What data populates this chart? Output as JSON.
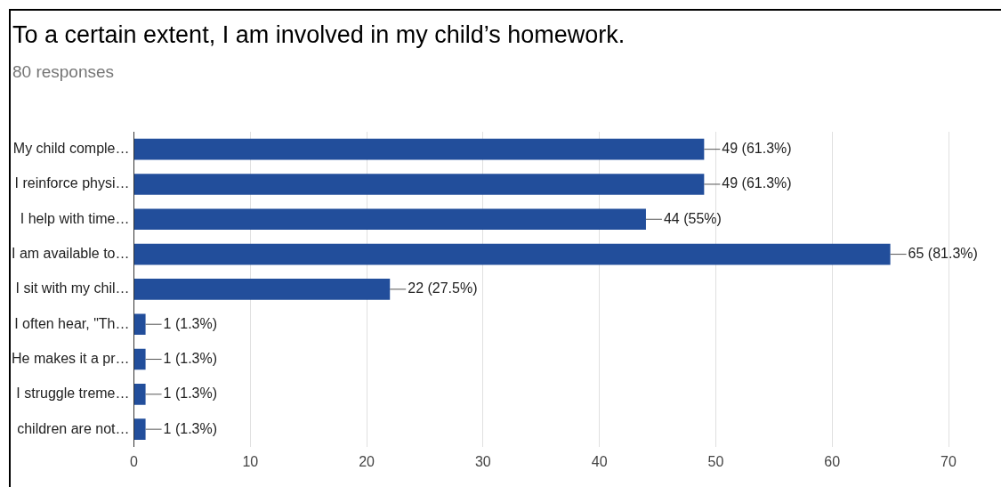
{
  "chart_data": {
    "type": "bar",
    "title": "To a certain extent, I am involved in my child’s homework.",
    "subtitle": "80 responses",
    "orientation": "horizontal",
    "categories": [
      "My child comple…",
      "I reinforce physi…",
      "I help with time…",
      "I am available to…",
      "I sit with my chil…",
      "I often hear, \"Th…",
      "He makes it a pr…",
      "I struggle treme…",
      "children are not…"
    ],
    "values": [
      49,
      49,
      44,
      65,
      22,
      1,
      1,
      1,
      1
    ],
    "value_labels": [
      "49 (61.3%)",
      "49 (61.3%)",
      "44 (55%)",
      "65 (81.3%)",
      "22 (27.5%)",
      "1 (1.3%)",
      "1 (1.3%)",
      "1 (1.3%)",
      "1 (1.3%)"
    ],
    "color": "#224e9b",
    "xlim": [
      0,
      70
    ],
    "xticks": [
      0,
      10,
      20,
      30,
      40,
      50,
      60,
      70
    ],
    "grid": "x"
  }
}
